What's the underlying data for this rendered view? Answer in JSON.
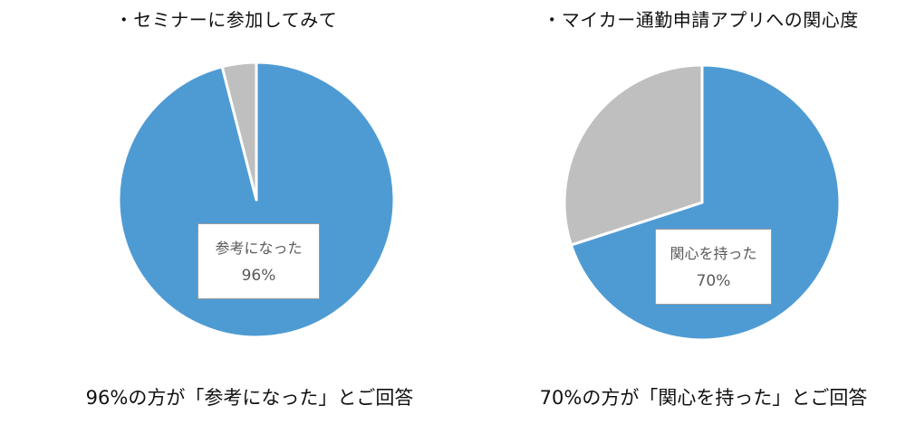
{
  "charts": [
    {
      "title": "・セミナーに参加してみて",
      "label_name": "参考になった",
      "label_value": "96%",
      "caption": "96%の方が「参考になった」とご回答"
    },
    {
      "title": "・マイカー通勤申請アプリへの関心度",
      "label_name": "関心を持った",
      "label_value": "70%",
      "caption": "70%の方が「関心を持った」とご回答"
    }
  ],
  "colors": {
    "primary": "#4E9BD4",
    "secondary": "#BFBFBF",
    "divider": "#FFFFFF"
  },
  "chart_data": [
    {
      "type": "pie",
      "title": "・セミナーに参加してみて",
      "slices": [
        {
          "label": "参考になった",
          "value": 96,
          "color": "#4E9BD4"
        },
        {
          "label": "",
          "value": 4,
          "color": "#BFBFBF"
        }
      ],
      "start": "12 o'clock",
      "direction": "clockwise",
      "data_label": "参考になった 96%"
    },
    {
      "type": "pie",
      "title": "・マイカー通勤申請アプリへの関心度",
      "slices": [
        {
          "label": "関心を持った",
          "value": 70,
          "color": "#4E9BD4"
        },
        {
          "label": "",
          "value": 30,
          "color": "#BFBFBF"
        }
      ],
      "start": "12 o'clock",
      "direction": "clockwise",
      "data_label": "関心を持った 70%"
    }
  ]
}
